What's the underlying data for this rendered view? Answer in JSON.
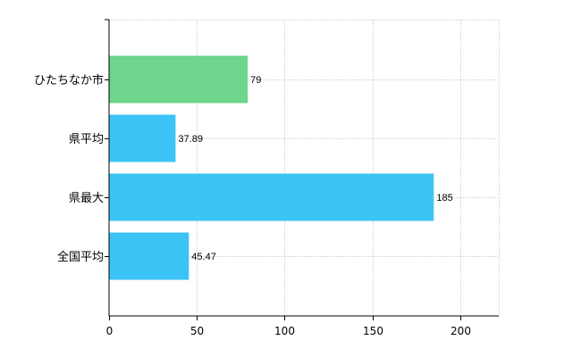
{
  "chart_data": {
    "type": "bar",
    "orientation": "horizontal",
    "categories": [
      "ひたちなか市",
      "県平均",
      "県最大",
      "全国平均"
    ],
    "values": [
      79,
      37.89,
      185,
      45.47
    ],
    "value_labels": [
      "79",
      "37.89",
      "185",
      "45.47"
    ],
    "bar_colors": [
      "#6dd58c",
      "#3cc3f5",
      "#3cc3f5",
      "#3cc3f5"
    ],
    "xlim": [
      0,
      222
    ],
    "xticks": [
      0,
      50,
      100,
      150,
      200
    ],
    "xtick_labels": [
      "0",
      "50",
      "100",
      "150",
      "200"
    ],
    "grid": true,
    "title": "",
    "xlabel": "",
    "ylabel": ""
  }
}
